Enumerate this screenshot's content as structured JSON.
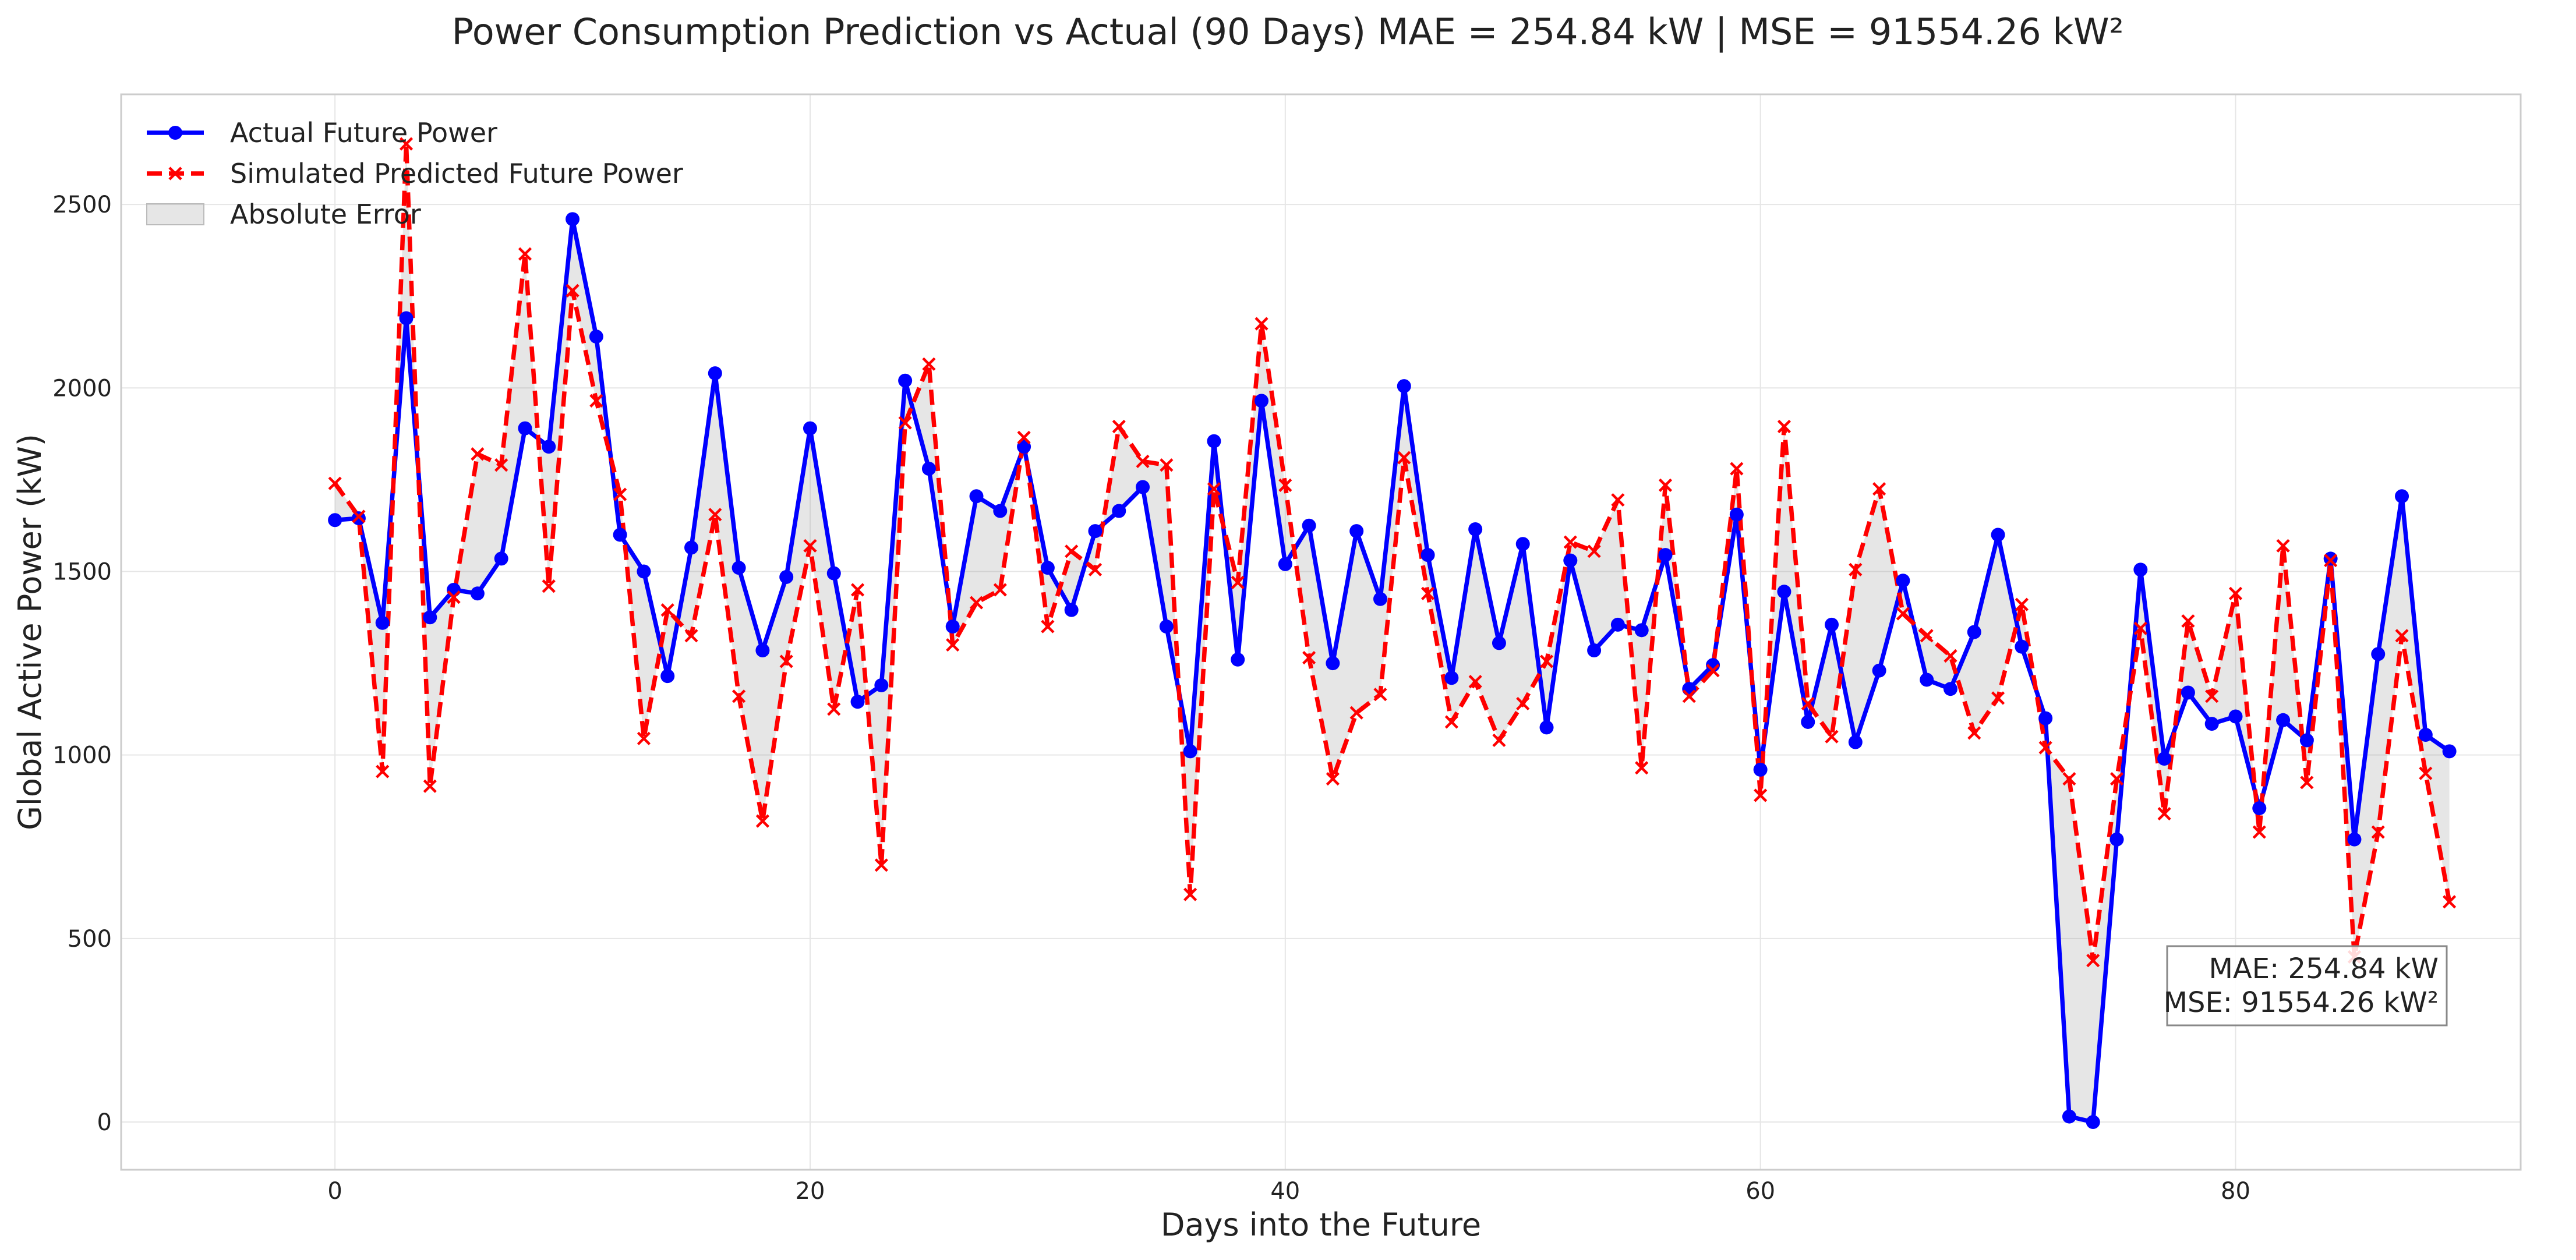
{
  "chart_data": {
    "type": "line",
    "title": "Power Consumption Prediction vs Actual (90 Days) MAE = 254.84 kW | MSE = 91554.26 kW²",
    "xlabel": "Days into the Future",
    "ylabel": "Global Active Power (kW)",
    "xlim": [
      -9,
      92
    ],
    "ylim": [
      -130,
      2800
    ],
    "xticks": [
      0,
      20,
      40,
      60,
      80
    ],
    "yticks": [
      0,
      500,
      1000,
      1500,
      2000,
      2500
    ],
    "grid": true,
    "legend_position": "top-left",
    "legend": [
      "Actual Future Power",
      "Simulated Predicted Future Power",
      "Absolute Error"
    ],
    "annotation": {
      "lines": [
        "MAE: 254.84 kW",
        "MSE: 91554.26 kW²"
      ],
      "position": "bottom-right"
    },
    "series": [
      {
        "name": "Actual Future Power",
        "color": "#0000ff",
        "style": "solid",
        "marker": "circle",
        "values": [
          1640,
          1645,
          1360,
          2190,
          1375,
          1450,
          1440,
          1535,
          1890,
          1840,
          2460,
          2140,
          1600,
          1500,
          1215,
          1565,
          2040,
          1510,
          1285,
          1485,
          1890,
          1495,
          1145,
          1190,
          2020,
          1780,
          1350,
          1705,
          1665,
          1840,
          1510,
          1395,
          1610,
          1665,
          1730,
          1350,
          1010,
          1855,
          1260,
          1965,
          1520,
          1625,
          1250,
          1610,
          1425,
          2005,
          1545,
          1210,
          1615,
          1305,
          1575,
          1075,
          1530,
          1285,
          1355,
          1340,
          1545,
          1180,
          1245,
          1655,
          960,
          1445,
          1090,
          1355,
          1035,
          1230,
          1475,
          1205,
          1180,
          1335,
          1600,
          1295,
          1100,
          15,
          0,
          770,
          1505,
          990,
          1170,
          1085,
          1105,
          855,
          1095,
          1040,
          1535,
          770,
          1275,
          1705,
          1055,
          1010
        ]
      },
      {
        "name": "Simulated Predicted Future Power",
        "color": "#ff0000",
        "style": "dashed",
        "marker": "x",
        "values": [
          1740,
          1650,
          955,
          2665,
          915,
          1430,
          1820,
          1790,
          2365,
          1460,
          2265,
          1965,
          1710,
          1045,
          1395,
          1325,
          1655,
          1160,
          820,
          1255,
          1570,
          1125,
          1450,
          700,
          1905,
          2065,
          1300,
          1415,
          1450,
          1865,
          1350,
          1555,
          1505,
          1895,
          1800,
          1790,
          620,
          1725,
          1470,
          2175,
          1735,
          1265,
          935,
          1115,
          1165,
          1810,
          1440,
          1090,
          1200,
          1040,
          1140,
          1255,
          1580,
          1555,
          1695,
          965,
          1735,
          1160,
          1230,
          1780,
          890,
          1895,
          1140,
          1050,
          1505,
          1725,
          1385,
          1325,
          1270,
          1060,
          1155,
          1410,
          1020,
          935,
          440,
          935,
          1345,
          840,
          1365,
          1160,
          1440,
          790,
          1570,
          925,
          1530,
          450,
          790,
          1325,
          950,
          600
        ]
      }
    ]
  }
}
